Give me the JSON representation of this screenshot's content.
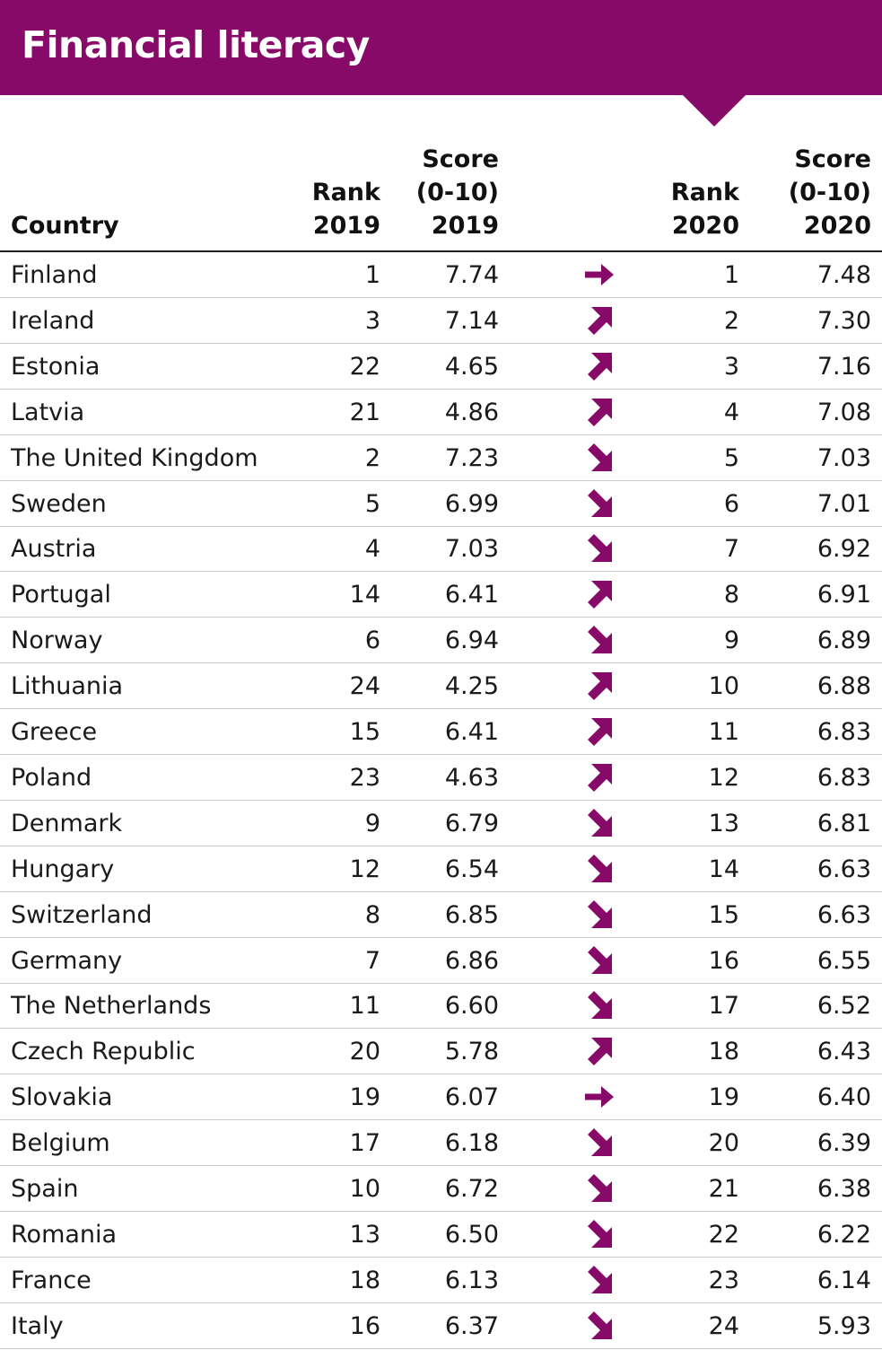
{
  "title": "Financial literacy",
  "colors": {
    "accent": "#870a69"
  },
  "headers": {
    "country": "Country",
    "rank_2019": "Rank\n2019",
    "score_2019": "Score\n(0-10)\n2019",
    "rank_2020": "Rank\n2020",
    "score_2020": "Score\n(0-10)\n2020"
  },
  "chart_data": {
    "type": "table",
    "title": "Financial literacy",
    "columns": [
      "Country",
      "Rank 2019",
      "Score (0-10) 2019",
      "",
      "Rank 2020",
      "Score (0-10) 2020"
    ],
    "rows": [
      {
        "country": "Finland",
        "rank_2019": "1",
        "score_2019": "7.74",
        "trend": "same-icon",
        "rank_2020": "1",
        "score_2020": "7.48"
      },
      {
        "country": "Ireland",
        "rank_2019": "3",
        "score_2019": "7.14",
        "trend": "up-icon",
        "rank_2020": "2",
        "score_2020": "7.30"
      },
      {
        "country": "Estonia",
        "rank_2019": "22",
        "score_2019": "4.65",
        "trend": "up-icon",
        "rank_2020": "3",
        "score_2020": "7.16"
      },
      {
        "country": "Latvia",
        "rank_2019": "21",
        "score_2019": "4.86",
        "trend": "up-icon",
        "rank_2020": "4",
        "score_2020": "7.08"
      },
      {
        "country": "The United Kingdom",
        "rank_2019": "2",
        "score_2019": "7.23",
        "trend": "down-icon",
        "rank_2020": "5",
        "score_2020": "7.03"
      },
      {
        "country": "Sweden",
        "rank_2019": "5",
        "score_2019": "6.99",
        "trend": "down-icon",
        "rank_2020": "6",
        "score_2020": "7.01"
      },
      {
        "country": "Austria",
        "rank_2019": "4",
        "score_2019": "7.03",
        "trend": "down-icon",
        "rank_2020": "7",
        "score_2020": "6.92"
      },
      {
        "country": "Portugal",
        "rank_2019": "14",
        "score_2019": "6.41",
        "trend": "up-icon",
        "rank_2020": "8",
        "score_2020": "6.91"
      },
      {
        "country": "Norway",
        "rank_2019": "6",
        "score_2019": "6.94",
        "trend": "down-icon",
        "rank_2020": "9",
        "score_2020": "6.89"
      },
      {
        "country": "Lithuania",
        "rank_2019": "24",
        "score_2019": "4.25",
        "trend": "up-icon",
        "rank_2020": "10",
        "score_2020": "6.88"
      },
      {
        "country": "Greece",
        "rank_2019": "15",
        "score_2019": "6.41",
        "trend": "up-icon",
        "rank_2020": "11",
        "score_2020": "6.83"
      },
      {
        "country": "Poland",
        "rank_2019": "23",
        "score_2019": "4.63",
        "trend": "up-icon",
        "rank_2020": "12",
        "score_2020": "6.83"
      },
      {
        "country": "Denmark",
        "rank_2019": "9",
        "score_2019": "6.79",
        "trend": "down-icon",
        "rank_2020": "13",
        "score_2020": "6.81"
      },
      {
        "country": "Hungary",
        "rank_2019": "12",
        "score_2019": "6.54",
        "trend": "down-icon",
        "rank_2020": "14",
        "score_2020": "6.63"
      },
      {
        "country": "Switzerland",
        "rank_2019": "8",
        "score_2019": "6.85",
        "trend": "down-icon",
        "rank_2020": "15",
        "score_2020": "6.63"
      },
      {
        "country": "Germany",
        "rank_2019": "7",
        "score_2019": "6.86",
        "trend": "down-icon",
        "rank_2020": "16",
        "score_2020": "6.55"
      },
      {
        "country": "The Netherlands",
        "rank_2019": "11",
        "score_2019": "6.60",
        "trend": "down-icon",
        "rank_2020": "17",
        "score_2020": "6.52"
      },
      {
        "country": "Czech Republic",
        "rank_2019": "20",
        "score_2019": "5.78",
        "trend": "up-icon",
        "rank_2020": "18",
        "score_2020": "6.43"
      },
      {
        "country": "Slovakia",
        "rank_2019": "19",
        "score_2019": "6.07",
        "trend": "same-icon",
        "rank_2020": "19",
        "score_2020": "6.40"
      },
      {
        "country": "Belgium",
        "rank_2019": "17",
        "score_2019": "6.18",
        "trend": "down-icon",
        "rank_2020": "20",
        "score_2020": "6.39"
      },
      {
        "country": "Spain",
        "rank_2019": "10",
        "score_2019": "6.72",
        "trend": "down-icon",
        "rank_2020": "21",
        "score_2020": "6.38"
      },
      {
        "country": "Romania",
        "rank_2019": "13",
        "score_2019": "6.50",
        "trend": "down-icon",
        "rank_2020": "22",
        "score_2020": "6.22"
      },
      {
        "country": "France",
        "rank_2019": "18",
        "score_2019": "6.13",
        "trend": "down-icon",
        "rank_2020": "23",
        "score_2020": "6.14"
      },
      {
        "country": "Italy",
        "rank_2019": "16",
        "score_2019": "6.37",
        "trend": "down-icon",
        "rank_2020": "24",
        "score_2020": "5.93"
      }
    ]
  }
}
